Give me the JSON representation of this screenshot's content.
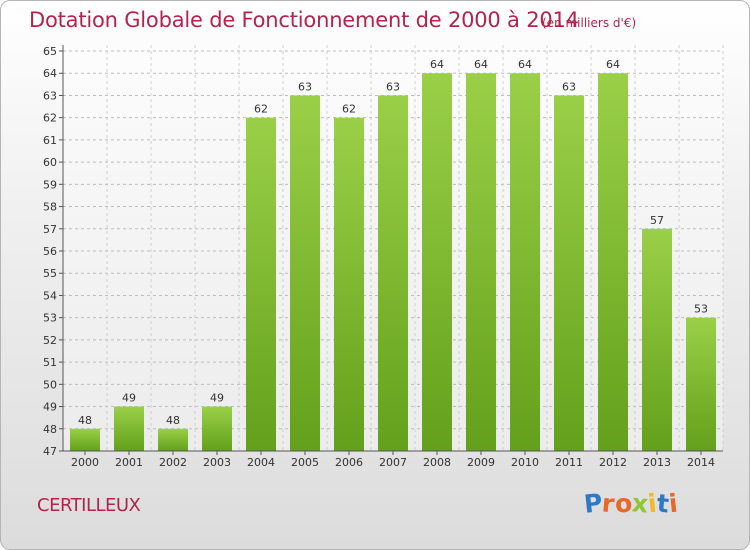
{
  "title": "Dotation Globale de Fonctionnement de 2000 à 2014",
  "unit_note": "(en milliers d'€)",
  "place": "CERTILLEUX",
  "logo_letters": [
    {
      "ch": "P",
      "color": "#2f79c4"
    },
    {
      "ch": "r",
      "color": "#e8672a"
    },
    {
      "ch": "o",
      "color": "#e8672a"
    },
    {
      "ch": "x",
      "color": "#8fc637"
    },
    {
      "ch": "i",
      "color": "#f2b92b"
    },
    {
      "ch": "t",
      "color": "#2f79c4"
    },
    {
      "ch": "i",
      "color": "#e8672a"
    }
  ],
  "colors": {
    "bar_light": "#9ad048",
    "bar_dark": "#63a01b",
    "accent": "#b5234c"
  },
  "chart_data": {
    "type": "bar",
    "title": "Dotation Globale de Fonctionnement de 2000 à 2014",
    "xlabel": "",
    "ylabel": "",
    "ylim": [
      47,
      65
    ],
    "y_ticks": [
      47,
      48,
      49,
      50,
      51,
      52,
      53,
      54,
      55,
      56,
      57,
      58,
      59,
      60,
      61,
      62,
      63,
      64,
      65
    ],
    "grid": true,
    "categories": [
      "2000",
      "2001",
      "2002",
      "2003",
      "2004",
      "2005",
      "2006",
      "2007",
      "2008",
      "2009",
      "2010",
      "2011",
      "2012",
      "2013",
      "2014"
    ],
    "values": [
      48,
      49,
      48,
      49,
      62,
      63,
      62,
      63,
      64,
      64,
      64,
      63,
      64,
      57,
      53
    ]
  }
}
